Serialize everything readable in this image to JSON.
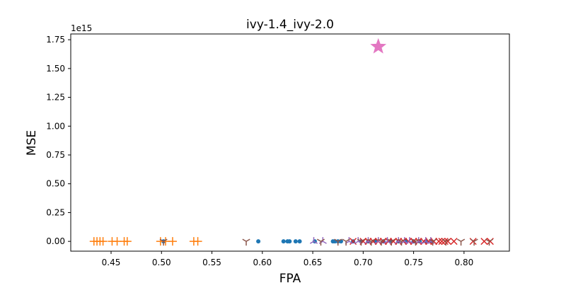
{
  "chart_data": {
    "type": "scatter",
    "title": "ivy-1.4_ivy-2.0",
    "xlabel": "FPA",
    "ylabel": "MSE",
    "y_offset_label": "1e15",
    "xlim": [
      0.41,
      0.845
    ],
    "ylim": [
      -0.085,
      1.8
    ],
    "y_scale_factor": 1000000000000000.0,
    "xticks": [
      0.45,
      0.5,
      0.55,
      0.6,
      0.65,
      0.7,
      0.75,
      0.8
    ],
    "xtick_labels": [
      "0.45",
      "0.50",
      "0.55",
      "0.60",
      "0.65",
      "0.70",
      "0.75",
      "0.80"
    ],
    "yticks": [
      0,
      0.25,
      0.5,
      0.75,
      1.0,
      1.25,
      1.5,
      1.75
    ],
    "ytick_labels": [
      "0.00",
      "0.25",
      "0.50",
      "0.75",
      "1.00",
      "1.25",
      "1.50",
      "1.75"
    ],
    "grid": false,
    "series": [
      {
        "marker": "circle",
        "color": "#1f77b4",
        "x": [
          0.502,
          0.596,
          0.621,
          0.625,
          0.627,
          0.633,
          0.637,
          0.652,
          0.67,
          0.672,
          0.675,
          0.678,
          0.69,
          0.698,
          0.705,
          0.712,
          0.72,
          0.727,
          0.735,
          0.742,
          0.75,
          0.756,
          0.762,
          0.768
        ],
        "y": [
          0,
          0,
          0,
          0,
          0,
          0,
          0,
          0,
          0,
          0,
          0,
          0,
          0,
          0,
          0,
          0,
          0,
          0,
          0,
          0,
          0,
          0,
          0,
          0
        ]
      },
      {
        "marker": "plus",
        "color": "#ff7f0e",
        "x": [
          0.433,
          0.436,
          0.439,
          0.442,
          0.451,
          0.456,
          0.463,
          0.466,
          0.499,
          0.504,
          0.511,
          0.532,
          0.536
        ],
        "y": [
          0,
          0,
          0,
          0,
          0,
          0,
          0,
          0,
          0,
          0,
          0,
          0,
          0
        ]
      },
      {
        "marker": "x",
        "color": "#d62728",
        "x": [
          0.69,
          0.7,
          0.705,
          0.71,
          0.715,
          0.72,
          0.725,
          0.73,
          0.735,
          0.74,
          0.745,
          0.75,
          0.755,
          0.76,
          0.765,
          0.77,
          0.775,
          0.778,
          0.781,
          0.784,
          0.79,
          0.809,
          0.82,
          0.826
        ],
        "y": [
          0,
          0,
          0,
          0,
          0,
          0,
          0,
          0,
          0,
          0,
          0,
          0,
          0,
          0,
          0,
          0,
          0,
          0,
          0,
          0,
          0,
          0,
          0,
          0
        ]
      },
      {
        "marker": "tri_up",
        "color": "#9467bd",
        "x": [
          0.651,
          0.66,
          0.686,
          0.695,
          0.705,
          0.715,
          0.724,
          0.735,
          0.741,
          0.746,
          0.755,
          0.762,
          0.767
        ],
        "y": [
          0,
          0,
          0,
          0,
          0,
          0,
          0,
          0,
          0,
          0,
          0,
          0,
          0
        ]
      },
      {
        "marker": "tri_down",
        "color": "#8c564b",
        "x": [
          0.502,
          0.584,
          0.658,
          0.675,
          0.683,
          0.698,
          0.708,
          0.718,
          0.728,
          0.738,
          0.752,
          0.769,
          0.782,
          0.797,
          0.81,
          0.825
        ],
        "y": [
          0,
          0,
          0,
          0,
          0,
          0,
          0,
          0,
          0,
          0,
          0,
          0,
          0,
          0,
          0,
          0
        ]
      },
      {
        "marker": "star",
        "color": "#e377c2",
        "x": [
          0.715
        ],
        "y": [
          1.69
        ]
      }
    ]
  }
}
